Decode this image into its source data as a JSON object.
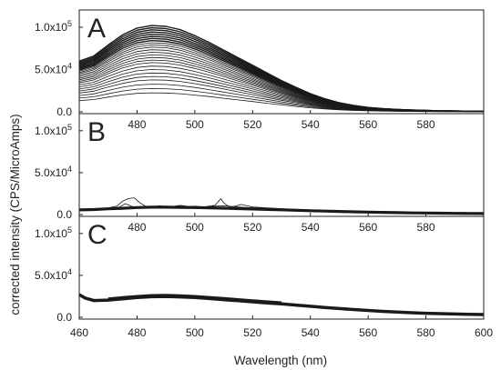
{
  "chart_data": {
    "type": "line",
    "xlabel": "Wavelength (nm)",
    "ylabel": "corrected intensity (CPS/MicroAmps)",
    "xlim": [
      460,
      600
    ],
    "x_ticks": [
      460,
      480,
      500,
      520,
      540,
      560,
      580,
      600
    ],
    "x_tick_labels": [
      "460",
      "480",
      "500",
      "520",
      "540",
      "560",
      "580",
      "600"
    ],
    "ylim": [
      0,
      115000
    ],
    "y_ticks": [
      0,
      50000,
      100000
    ],
    "y_tick_labels": [
      {
        "base": "0.0",
        "exp": ""
      },
      {
        "base": "5.0x10",
        "exp": "4"
      },
      {
        "base": "1.0x10",
        "exp": "5"
      }
    ],
    "line_color": "#1a1a1a",
    "grid": false,
    "legend": "none",
    "panels": [
      {
        "label": "A",
        "description_type": "family of spectra",
        "x": [
          460,
          465,
          470,
          475,
          480,
          485,
          490,
          495,
          500,
          505,
          510,
          515,
          520,
          525,
          530,
          535,
          540,
          545,
          550,
          555,
          560,
          565,
          570,
          575,
          580,
          585,
          590,
          595,
          600
        ],
        "envelope": [
          60000,
          66000,
          79000,
          91000,
          99000,
          102000,
          101000,
          97000,
          90000,
          82000,
          73000,
          64000,
          55000,
          46000,
          37000,
          29000,
          21500,
          15500,
          10800,
          7500,
          5200,
          3800,
          2800,
          2100,
          1600,
          1200,
          1000,
          800,
          700
        ],
        "series_scales": [
          1.0,
          0.975,
          0.95,
          0.925,
          0.9,
          0.875,
          0.85,
          0.825,
          0.8,
          0.775,
          0.75,
          0.72,
          0.69,
          0.66,
          0.63,
          0.6,
          0.57,
          0.53,
          0.49,
          0.45,
          0.41,
          0.37,
          0.32,
          0.27,
          0.22
        ]
      },
      {
        "label": "B",
        "series": [
          {
            "x": [
              460,
              465,
              470,
              475,
              480,
              485,
              490,
              495,
              500,
              505,
              510,
              515,
              520,
              525,
              530,
              535,
              540,
              545,
              550,
              555,
              560,
              565,
              570,
              575,
              580,
              585,
              590,
              595,
              600
            ],
            "values": [
              5500,
              6000,
              6800,
              7500,
              8300,
              8800,
              8800,
              8600,
              8300,
              8000,
              7600,
              7100,
              6600,
              6100,
              5600,
              5100,
              4600,
              4100,
              3700,
              3300,
              2900,
              2600,
              2300,
              2000,
              1800,
              1600,
              1400,
              1300,
              1200
            ]
          },
          {
            "x": [
              460,
              465,
              470,
              473,
              475,
              477,
              479,
              481,
              483,
              485,
              488,
              490,
              493,
              495,
              498,
              500,
              503,
              505,
              507,
              509,
              510,
              512,
              514,
              516,
              520,
              525,
              530,
              540,
              550,
              560,
              570,
              580,
              590,
              600
            ],
            "values": [
              5000,
              6000,
              8000,
              10000,
              16000,
              19000,
              20000,
              14000,
              10000,
              9000,
              10500,
              9000,
              10000,
              11000,
              9500,
              10000,
              9000,
              10000,
              11000,
              19000,
              14000,
              9000,
              10000,
              12000,
              9000,
              8000,
              7000,
              5500,
              4500,
              3500,
              2600,
              2000,
              1600,
              1300
            ]
          },
          {
            "x": [
              460,
              470,
              474,
              476,
              478,
              480,
              484,
              490,
              495,
              500,
              505,
              510,
              515,
              520,
              530,
              540,
              550,
              560,
              570,
              580,
              590,
              600
            ],
            "values": [
              5000,
              7000,
              9000,
              13000,
              10000,
              8000,
              9500,
              8500,
              9500,
              8800,
              9500,
              10500,
              9000,
              8000,
              6500,
              5000,
              4000,
              3200,
              2500,
              1900,
              1500,
              1200
            ]
          }
        ]
      },
      {
        "label": "C",
        "x": [
          460,
          462,
          465,
          470,
          475,
          480,
          485,
          490,
          495,
          500,
          505,
          510,
          515,
          520,
          525,
          530,
          535,
          540,
          545,
          550,
          555,
          560,
          565,
          570,
          575,
          580,
          585,
          590,
          595,
          600
        ],
        "values": [
          27000,
          23000,
          20000,
          20500,
          22000,
          23500,
          24500,
          24800,
          24300,
          23500,
          22300,
          21000,
          19700,
          18400,
          17100,
          15900,
          14500,
          13100,
          11700,
          10400,
          9200,
          8100,
          7100,
          6200,
          5400,
          4800,
          4300,
          3900,
          3600,
          3300
        ],
        "band_values": [
          2500,
          3000,
          3500,
          3500,
          3200,
          2800,
          2400,
          2000,
          1600
        ]
      }
    ]
  }
}
